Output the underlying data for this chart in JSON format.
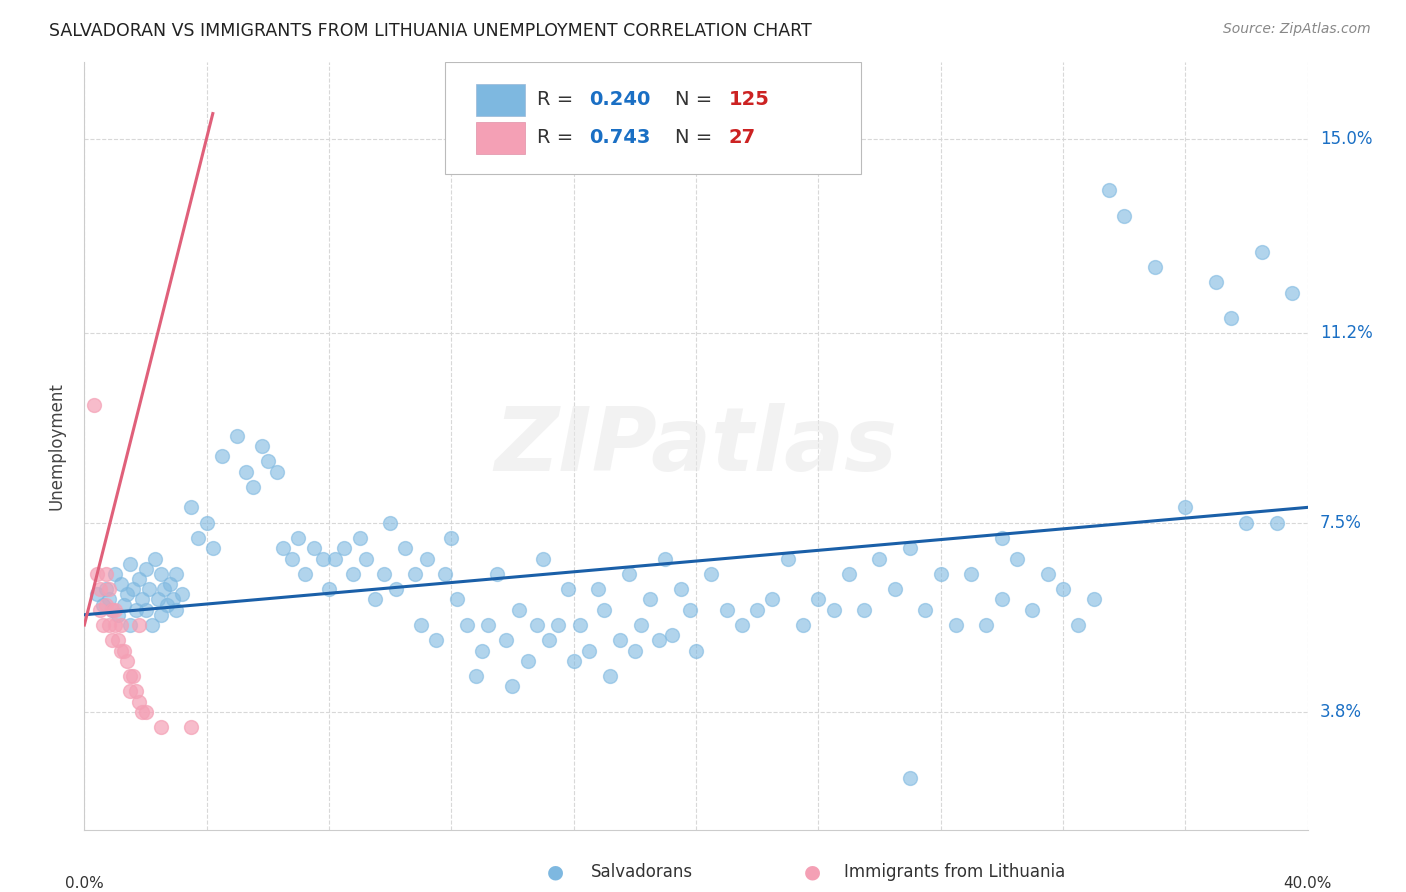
{
  "title": "SALVADORAN VS IMMIGRANTS FROM LITHUANIA UNEMPLOYMENT CORRELATION CHART",
  "source": "Source: ZipAtlas.com",
  "ylabel": "Unemployment",
  "ytick_labels": [
    "3.8%",
    "7.5%",
    "11.2%",
    "15.0%"
  ],
  "ytick_values": [
    3.8,
    7.5,
    11.2,
    15.0
  ],
  "legend_blue_R": "0.240",
  "legend_blue_N": "125",
  "legend_pink_R": "0.743",
  "legend_pink_N": "27",
  "legend_label_blue": "Salvadorans",
  "legend_label_pink": "Immigrants from Lithuania",
  "watermark": "ZIPatlas",
  "blue_color": "#7eb8e0",
  "pink_color": "#f4a0b5",
  "trend_blue_color": "#1a5fa8",
  "trend_pink_color": "#e0607a",
  "value_color": "#1a6fc4",
  "background_color": "#ffffff",
  "blue_scatter": [
    [
      0.4,
      6.1
    ],
    [
      0.6,
      5.9
    ],
    [
      0.7,
      6.2
    ],
    [
      0.8,
      6.0
    ],
    [
      0.9,
      5.8
    ],
    [
      1.0,
      6.5
    ],
    [
      1.1,
      5.7
    ],
    [
      1.2,
      6.3
    ],
    [
      1.3,
      5.9
    ],
    [
      1.4,
      6.1
    ],
    [
      1.5,
      5.5
    ],
    [
      1.5,
      6.7
    ],
    [
      1.6,
      6.2
    ],
    [
      1.7,
      5.8
    ],
    [
      1.8,
      6.4
    ],
    [
      1.9,
      6.0
    ],
    [
      2.0,
      6.6
    ],
    [
      2.0,
      5.8
    ],
    [
      2.1,
      6.2
    ],
    [
      2.2,
      5.5
    ],
    [
      2.3,
      6.8
    ],
    [
      2.4,
      6.0
    ],
    [
      2.5,
      5.7
    ],
    [
      2.5,
      6.5
    ],
    [
      2.6,
      6.2
    ],
    [
      2.7,
      5.9
    ],
    [
      2.8,
      6.3
    ],
    [
      2.9,
      6.0
    ],
    [
      3.0,
      5.8
    ],
    [
      3.0,
      6.5
    ],
    [
      3.2,
      6.1
    ],
    [
      3.5,
      7.8
    ],
    [
      3.7,
      7.2
    ],
    [
      4.0,
      7.5
    ],
    [
      4.2,
      7.0
    ],
    [
      4.5,
      8.8
    ],
    [
      5.0,
      9.2
    ],
    [
      5.3,
      8.5
    ],
    [
      5.5,
      8.2
    ],
    [
      5.8,
      9.0
    ],
    [
      6.0,
      8.7
    ],
    [
      6.3,
      8.5
    ],
    [
      6.5,
      7.0
    ],
    [
      6.8,
      6.8
    ],
    [
      7.0,
      7.2
    ],
    [
      7.2,
      6.5
    ],
    [
      7.5,
      7.0
    ],
    [
      7.8,
      6.8
    ],
    [
      8.0,
      6.2
    ],
    [
      8.2,
      6.8
    ],
    [
      8.5,
      7.0
    ],
    [
      8.8,
      6.5
    ],
    [
      9.0,
      7.2
    ],
    [
      9.2,
      6.8
    ],
    [
      9.5,
      6.0
    ],
    [
      9.8,
      6.5
    ],
    [
      10.0,
      7.5
    ],
    [
      10.2,
      6.2
    ],
    [
      10.5,
      7.0
    ],
    [
      10.8,
      6.5
    ],
    [
      11.0,
      5.5
    ],
    [
      11.2,
      6.8
    ],
    [
      11.5,
      5.2
    ],
    [
      11.8,
      6.5
    ],
    [
      12.0,
      7.2
    ],
    [
      12.2,
      6.0
    ],
    [
      12.5,
      5.5
    ],
    [
      12.8,
      4.5
    ],
    [
      13.0,
      5.0
    ],
    [
      13.2,
      5.5
    ],
    [
      13.5,
      6.5
    ],
    [
      13.8,
      5.2
    ],
    [
      14.0,
      4.3
    ],
    [
      14.2,
      5.8
    ],
    [
      14.5,
      4.8
    ],
    [
      14.8,
      5.5
    ],
    [
      15.0,
      6.8
    ],
    [
      15.2,
      5.2
    ],
    [
      15.5,
      5.5
    ],
    [
      15.8,
      6.2
    ],
    [
      16.0,
      4.8
    ],
    [
      16.2,
      5.5
    ],
    [
      16.5,
      5.0
    ],
    [
      16.8,
      6.2
    ],
    [
      17.0,
      5.8
    ],
    [
      17.2,
      4.5
    ],
    [
      17.5,
      5.2
    ],
    [
      17.8,
      6.5
    ],
    [
      18.0,
      5.0
    ],
    [
      18.2,
      5.5
    ],
    [
      18.5,
      6.0
    ],
    [
      18.8,
      5.2
    ],
    [
      19.0,
      6.8
    ],
    [
      19.2,
      5.3
    ],
    [
      19.5,
      6.2
    ],
    [
      19.8,
      5.8
    ],
    [
      20.0,
      5.0
    ],
    [
      20.5,
      6.5
    ],
    [
      21.0,
      5.8
    ],
    [
      21.5,
      5.5
    ],
    [
      22.0,
      5.8
    ],
    [
      22.5,
      6.0
    ],
    [
      23.0,
      6.8
    ],
    [
      23.5,
      5.5
    ],
    [
      24.0,
      6.0
    ],
    [
      24.5,
      5.8
    ],
    [
      25.0,
      6.5
    ],
    [
      25.5,
      5.8
    ],
    [
      26.0,
      6.8
    ],
    [
      26.5,
      6.2
    ],
    [
      27.0,
      7.0
    ],
    [
      27.5,
      5.8
    ],
    [
      28.0,
      6.5
    ],
    [
      28.5,
      5.5
    ],
    [
      29.0,
      6.5
    ],
    [
      29.5,
      5.5
    ],
    [
      30.0,
      6.0
    ],
    [
      30.5,
      6.8
    ],
    [
      31.0,
      5.8
    ],
    [
      31.5,
      6.5
    ],
    [
      32.0,
      6.2
    ],
    [
      32.5,
      5.5
    ],
    [
      33.0,
      6.0
    ],
    [
      33.5,
      14.0
    ],
    [
      34.0,
      13.5
    ],
    [
      35.0,
      12.5
    ],
    [
      36.0,
      7.8
    ],
    [
      37.0,
      12.2
    ],
    [
      37.5,
      11.5
    ],
    [
      38.0,
      7.5
    ],
    [
      38.5,
      12.8
    ],
    [
      39.0,
      7.5
    ],
    [
      39.5,
      12.0
    ],
    [
      27.0,
      2.5
    ],
    [
      30.0,
      7.2
    ]
  ],
  "pink_scatter": [
    [
      0.3,
      9.8
    ],
    [
      0.4,
      6.5
    ],
    [
      0.5,
      5.8
    ],
    [
      0.5,
      6.2
    ],
    [
      0.6,
      5.5
    ],
    [
      0.7,
      6.5
    ],
    [
      0.7,
      5.9
    ],
    [
      0.8,
      5.5
    ],
    [
      0.8,
      6.2
    ],
    [
      0.9,
      5.8
    ],
    [
      0.9,
      5.2
    ],
    [
      1.0,
      5.5
    ],
    [
      1.0,
      5.8
    ],
    [
      1.1,
      5.2
    ],
    [
      1.2,
      5.0
    ],
    [
      1.2,
      5.5
    ],
    [
      1.3,
      5.0
    ],
    [
      1.4,
      4.8
    ],
    [
      1.5,
      4.5
    ],
    [
      1.5,
      4.2
    ],
    [
      1.6,
      4.5
    ],
    [
      1.7,
      4.2
    ],
    [
      1.8,
      4.0
    ],
    [
      1.9,
      3.8
    ],
    [
      2.0,
      3.8
    ],
    [
      2.5,
      3.5
    ],
    [
      3.5,
      3.5
    ],
    [
      1.8,
      5.5
    ]
  ],
  "x_min": 0.0,
  "x_max": 40.0,
  "y_min": 1.5,
  "y_max": 16.5,
  "blue_trend_x": [
    0.0,
    40.0
  ],
  "blue_trend_y": [
    5.7,
    7.8
  ],
  "pink_trend_x": [
    0.0,
    4.2
  ],
  "pink_trend_y": [
    5.5,
    15.5
  ]
}
